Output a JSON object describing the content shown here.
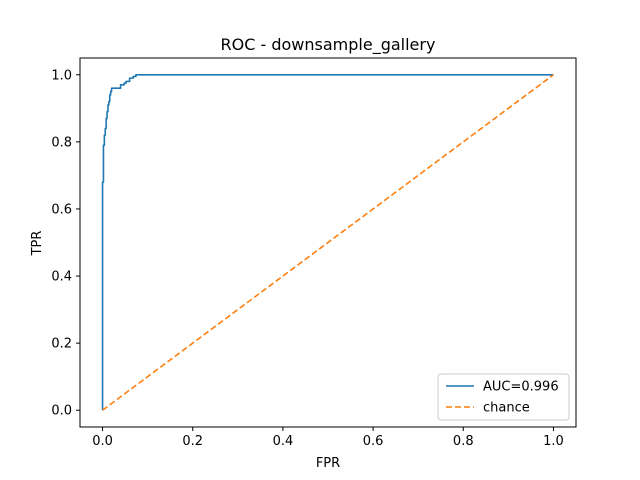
{
  "chart_data": {
    "type": "line",
    "title": "ROC - downsample_gallery",
    "xlabel": "FPR",
    "ylabel": "TPR",
    "xlim": [
      -0.05,
      1.05
    ],
    "ylim": [
      -0.05,
      1.05
    ],
    "xticks": [
      "0.0",
      "0.2",
      "0.4",
      "0.6",
      "0.8",
      "1.0"
    ],
    "yticks": [
      "0.0",
      "0.2",
      "0.4",
      "0.6",
      "0.8",
      "1.0"
    ],
    "grid": false,
    "legend_position": "lower-right",
    "series": [
      {
        "name": "AUC=0.996",
        "color": "#1f77b4",
        "style": "solid",
        "x": [
          0.0,
          0.0,
          0.002,
          0.002,
          0.004,
          0.004,
          0.006,
          0.006,
          0.008,
          0.008,
          0.01,
          0.01,
          0.012,
          0.012,
          0.014,
          0.014,
          0.016,
          0.016,
          0.018,
          0.018,
          0.02,
          0.02,
          0.04,
          0.04,
          0.048,
          0.048,
          0.052,
          0.052,
          0.06,
          0.06,
          0.068,
          0.068,
          0.074,
          0.074,
          1.0
        ],
        "y": [
          0.0,
          0.68,
          0.68,
          0.79,
          0.79,
          0.82,
          0.82,
          0.84,
          0.84,
          0.87,
          0.87,
          0.89,
          0.89,
          0.91,
          0.91,
          0.92,
          0.92,
          0.94,
          0.94,
          0.95,
          0.95,
          0.96,
          0.96,
          0.97,
          0.97,
          0.975,
          0.975,
          0.98,
          0.98,
          0.99,
          0.99,
          0.995,
          0.995,
          1.0,
          1.0
        ]
      },
      {
        "name": "chance",
        "color": "#ff7f0e",
        "style": "dashed",
        "x": [
          0.0,
          1.0
        ],
        "y": [
          0.0,
          1.0
        ]
      }
    ]
  }
}
